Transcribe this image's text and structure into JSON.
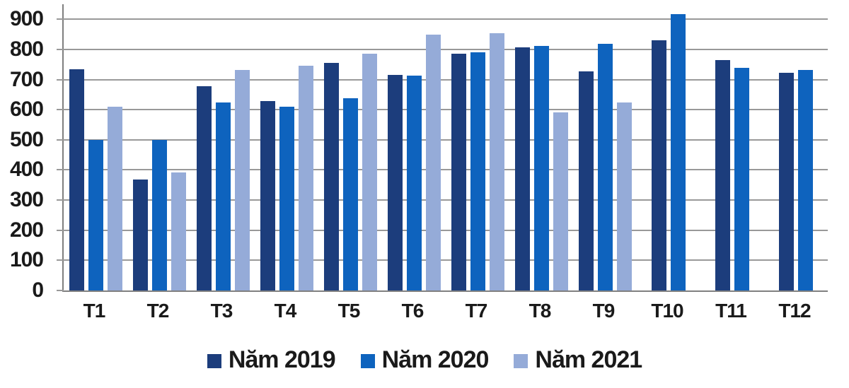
{
  "chart_data": {
    "type": "bar",
    "categories": [
      "T1",
      "T2",
      "T3",
      "T4",
      "T5",
      "T6",
      "T7",
      "T8",
      "T9",
      "T10",
      "T11",
      "T12"
    ],
    "series": [
      {
        "name": "Năm 2019",
        "color": "#1c3d7c",
        "values": [
          735,
          368,
          678,
          629,
          755,
          716,
          787,
          807,
          727,
          831,
          764,
          723
        ]
      },
      {
        "name": "Năm 2020",
        "color": "#0e63be",
        "values": [
          500,
          500,
          624,
          611,
          637,
          713,
          791,
          811,
          818,
          917,
          738,
          731
        ]
      },
      {
        "name": "Năm 2021",
        "color": "#95abd8",
        "values": [
          611,
          392,
          731,
          745,
          787,
          849,
          853,
          592,
          625,
          null,
          null,
          null
        ]
      }
    ],
    "title": "",
    "xlabel": "",
    "ylabel": "",
    "ylim": [
      0,
      900
    ],
    "ytick_interval": 100,
    "yticks": [
      "0",
      "100",
      "200",
      "300",
      "400",
      "500",
      "600",
      "700",
      "800",
      "900"
    ],
    "grid": true,
    "legend_position": "bottom",
    "gridline_color": "#999999",
    "axis_color": "#808080",
    "text_color": "#1a1a1a",
    "background_color": "#ffffff"
  }
}
